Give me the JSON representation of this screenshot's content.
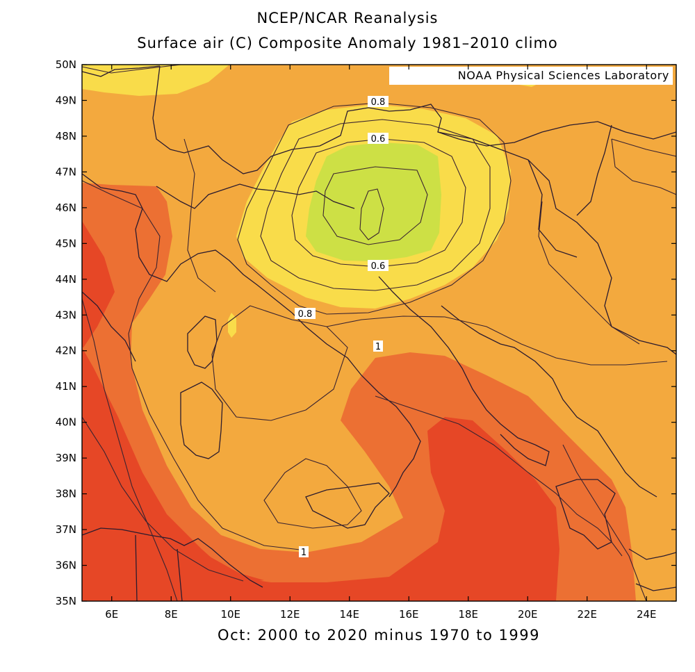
{
  "title": "NCEP/NCAR Reanalysis",
  "subtitle": "Surface air (C) Composite Anomaly 1981–2010 climo",
  "credit": "NOAA Physical Sciences Laboratory",
  "x_caption": "Oct: 2000 to 2020 minus 1970 to 1999",
  "map": {
    "lon_range": [
      5,
      25
    ],
    "lat_range": [
      35,
      50
    ],
    "x_ticks": [
      "6E",
      "8E",
      "10E",
      "12E",
      "14E",
      "16E",
      "18E",
      "20E",
      "22E",
      "24E"
    ],
    "y_ticks": [
      "35N",
      "36N",
      "37N",
      "38N",
      "39N",
      "40N",
      "41N",
      "42N",
      "43N",
      "44N",
      "45N",
      "46N",
      "47N",
      "48N",
      "49N",
      "50N"
    ],
    "fill_colors": {
      "green": "#cde045",
      "yellow": "#f9dc4a",
      "light_orange": "#f3a93e",
      "orange": "#ec7033",
      "red": "#e64726"
    },
    "contour_labels": [
      "0.8",
      "0.6",
      "0.6",
      "0.8",
      "1",
      "1"
    ]
  }
}
